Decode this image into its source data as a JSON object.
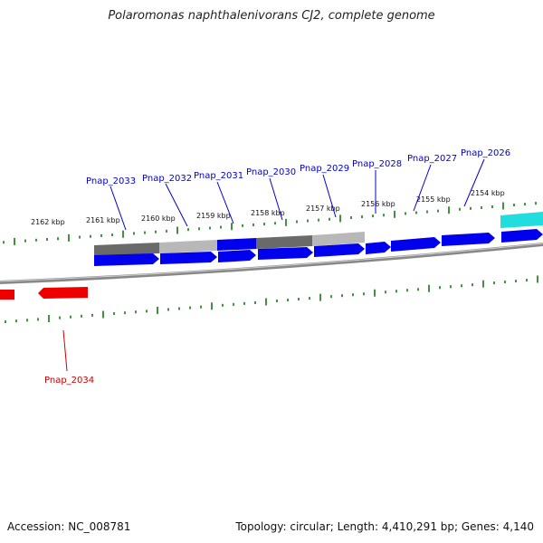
{
  "title": "Polaromonas naphthalenivorans CJ2, complete genome",
  "footer": {
    "accession": "Accession: NC_008781",
    "topology": "Topology: circular; Length: 4,410,291 bp; Genes: 4,140"
  },
  "ruler_labels": [
    "2162 kbp",
    "2161 kbp",
    "2160 kbp",
    "2159 kbp",
    "2158 kbp",
    "2157 kbp",
    "2156 kbp",
    "2155 kbp",
    "2154 kbp"
  ],
  "forward_genes": [
    "Pnap_2033",
    "Pnap_2032",
    "Pnap_2031",
    "Pnap_2030",
    "Pnap_2029",
    "Pnap_2028",
    "Pnap_2027",
    "Pnap_2026"
  ],
  "reverse_genes": [
    "Pnap_2034"
  ],
  "colors": {
    "forward_cds": "#0000ee",
    "reverse_cds": "#ee0000",
    "dark_gray": "#6a6a6a",
    "light_gray": "#b8b8b8",
    "cyan": "#22dddd",
    "tick": "#117711",
    "label_blue": "#0000cc",
    "label_red": "#cc0000"
  }
}
